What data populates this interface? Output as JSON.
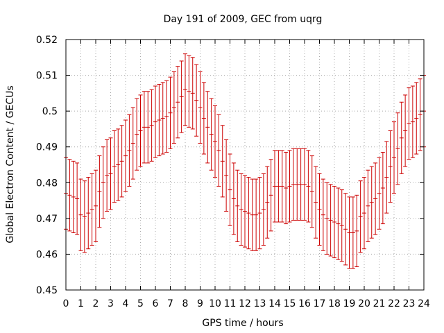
{
  "chart_data": {
    "type": "scatter",
    "title": "Day 191 of 2009, GEC from uqrg",
    "xlabel": "GPS time / hours",
    "ylabel": "Global Electron Content / GECUs",
    "xlim": [
      0,
      24
    ],
    "ylim": [
      0.45,
      0.52
    ],
    "xticks": [
      "0",
      "1",
      "2",
      "3",
      "4",
      "5",
      "6",
      "7",
      "8",
      "9",
      "10",
      "11",
      "12",
      "13",
      "14",
      "15",
      "16",
      "17",
      "18",
      "19",
      "20",
      "21",
      "22",
      "23",
      "24"
    ],
    "yticks": [
      "0.45",
      "0.46",
      "0.47",
      "0.48",
      "0.49",
      "0.5",
      "0.51",
      "0.52"
    ],
    "grid": true,
    "error_bar": 0.01,
    "colors": {
      "series": "#cc0000",
      "grid": "#aaaaaa",
      "axis": "#000000"
    },
    "series": [
      {
        "x": [
          0,
          0.25,
          0.5,
          0.75,
          1,
          1.25,
          1.5,
          1.75,
          2,
          2.25,
          2.5,
          2.75,
          3,
          3.25,
          3.5,
          3.75,
          4,
          4.25,
          4.5,
          4.75,
          5,
          5.25,
          5.5,
          5.75,
          6,
          6.25,
          6.5,
          6.75,
          7,
          7.25,
          7.5,
          7.75,
          8,
          8.25,
          8.5,
          8.75,
          9,
          9.25,
          9.5,
          9.75,
          10,
          10.25,
          10.5,
          10.75,
          11,
          11.25,
          11.5,
          11.75,
          12,
          12.25,
          12.5,
          12.75,
          13,
          13.25,
          13.5,
          13.75,
          14,
          14.25,
          14.5,
          14.75,
          15,
          15.25,
          15.5,
          15.75,
          16,
          16.25,
          16.5,
          16.75,
          17,
          17.25,
          17.5,
          17.75,
          18,
          18.25,
          18.5,
          18.75,
          19,
          19.25,
          19.5,
          19.75,
          20,
          20.25,
          20.5,
          20.75,
          21,
          21.25,
          21.5,
          21.75,
          22,
          22.25,
          22.5,
          22.75,
          23,
          23.25,
          23.5,
          23.75,
          24
        ],
        "y": [
          0.477,
          0.4765,
          0.476,
          0.4755,
          0.471,
          0.4705,
          0.4715,
          0.4725,
          0.4735,
          0.4775,
          0.48,
          0.482,
          0.4825,
          0.4845,
          0.485,
          0.486,
          0.4875,
          0.489,
          0.491,
          0.4935,
          0.4945,
          0.4955,
          0.4955,
          0.496,
          0.497,
          0.4975,
          0.498,
          0.4985,
          0.4995,
          0.501,
          0.5025,
          0.504,
          0.506,
          0.5055,
          0.505,
          0.503,
          0.501,
          0.498,
          0.4955,
          0.4935,
          0.4915,
          0.489,
          0.486,
          0.482,
          0.478,
          0.4755,
          0.4735,
          0.4725,
          0.472,
          0.4715,
          0.471,
          0.471,
          0.4715,
          0.4725,
          0.4745,
          0.4765,
          0.479,
          0.479,
          0.479,
          0.4785,
          0.479,
          0.4795,
          0.4795,
          0.4795,
          0.4795,
          0.479,
          0.4775,
          0.4745,
          0.4725,
          0.471,
          0.47,
          0.4695,
          0.469,
          0.4685,
          0.468,
          0.467,
          0.466,
          0.466,
          0.4665,
          0.4705,
          0.4715,
          0.4735,
          0.4745,
          0.4755,
          0.477,
          0.4785,
          0.4815,
          0.4845,
          0.487,
          0.4895,
          0.4925,
          0.4945,
          0.4965,
          0.497,
          0.498,
          0.499,
          0.5
        ]
      }
    ]
  }
}
